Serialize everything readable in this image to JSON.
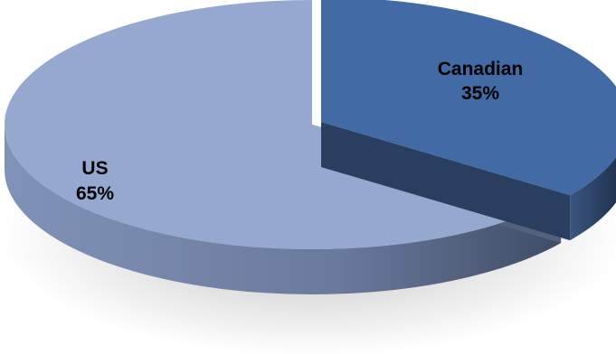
{
  "chart_data": {
    "type": "pie",
    "style": "3d-exploded",
    "slices": [
      {
        "label": "Canadian",
        "pct_label": "35%",
        "value": 35,
        "color": "#426aa5",
        "exploded": true
      },
      {
        "label": "US",
        "pct_label": "65%",
        "value": 65,
        "color": "#95a9d0",
        "exploded": false
      }
    ]
  }
}
